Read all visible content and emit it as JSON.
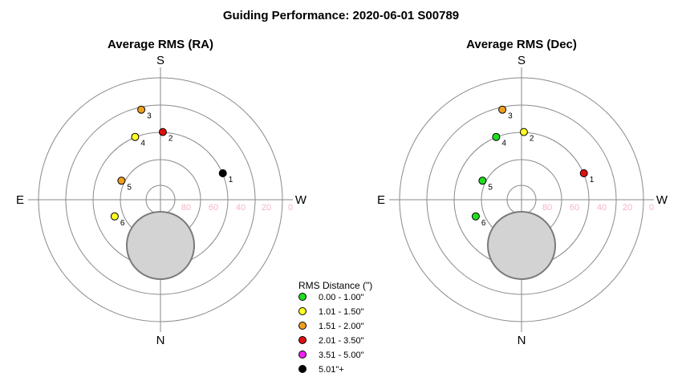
{
  "figure": {
    "title": "Guiding Performance: 2020-06-01 S00789"
  },
  "chart_data": [
    {
      "type": "scatter",
      "projection": "polar",
      "title": "Average RMS (RA)",
      "compass": {
        "top": "S",
        "bottom": "N",
        "left": "E",
        "right": "W"
      },
      "altitude_labels": [
        80,
        60,
        40,
        20,
        0
      ],
      "radial_range": [
        90,
        0
      ],
      "grid": true,
      "points": [
        {
          "label": "1",
          "azimuth": 67,
          "altitude": 40,
          "rms_class": 5
        },
        {
          "label": "2",
          "azimuth": 2,
          "altitude": 40,
          "rms_class": 3
        },
        {
          "label": "3",
          "azimuth": -12,
          "altitude": 22,
          "rms_class": 2
        },
        {
          "label": "4",
          "azimuth": -22,
          "altitude": 40,
          "rms_class": 1
        },
        {
          "label": "5",
          "azimuth": -64,
          "altitude": 58,
          "rms_class": 2
        },
        {
          "label": "6",
          "azimuth": -110,
          "altitude": 54,
          "rms_class": 1
        }
      ]
    },
    {
      "type": "scatter",
      "projection": "polar",
      "title": "Average RMS (Dec)",
      "compass": {
        "top": "S",
        "bottom": "N",
        "left": "E",
        "right": "W"
      },
      "altitude_labels": [
        80,
        60,
        40,
        20,
        0
      ],
      "radial_range": [
        90,
        0
      ],
      "grid": true,
      "points": [
        {
          "label": "1",
          "azimuth": 67,
          "altitude": 40,
          "rms_class": 3
        },
        {
          "label": "2",
          "azimuth": 2,
          "altitude": 40,
          "rms_class": 1
        },
        {
          "label": "3",
          "azimuth": -12,
          "altitude": 22,
          "rms_class": 2
        },
        {
          "label": "4",
          "azimuth": -22,
          "altitude": 40,
          "rms_class": 0
        },
        {
          "label": "5",
          "azimuth": -64,
          "altitude": 58,
          "rms_class": 0
        },
        {
          "label": "6",
          "azimuth": -110,
          "altitude": 54,
          "rms_class": 0
        }
      ]
    }
  ],
  "legend": {
    "title": "RMS Distance (\")",
    "placement": "bottom-center",
    "entries": [
      {
        "label": "0.00 - 1.00\"",
        "color": "#22dd22"
      },
      {
        "label": "1.01 - 1.50\"",
        "color": "#ffff22"
      },
      {
        "label": "1.51 - 2.00\"",
        "color": "#f0a020"
      },
      {
        "label": "2.01 - 3.50\"",
        "color": "#e01010"
      },
      {
        "label": "3.51 - 5.00\"",
        "color": "#ee22ee"
      },
      {
        "label": "5.01\"+",
        "color": "#000000"
      }
    ]
  }
}
